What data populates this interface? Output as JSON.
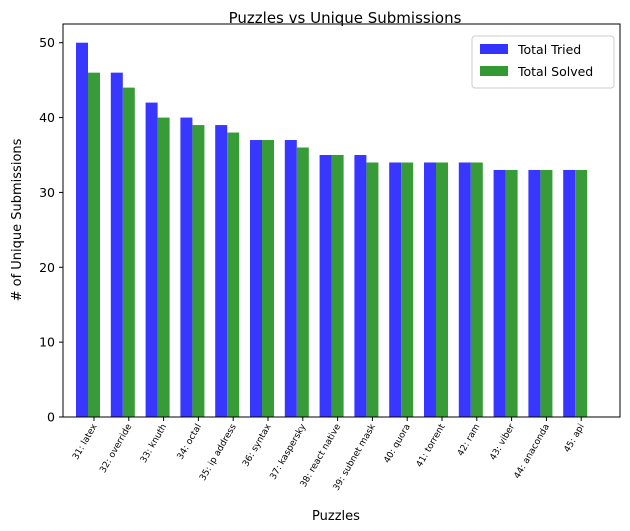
{
  "chart_data": {
    "type": "bar",
    "title": "Puzzles vs Unique Submissions",
    "xlabel": "Puzzles",
    "ylabel": "# of Unique Submissions",
    "ylim": [
      0,
      52.5
    ],
    "yticks": [
      0,
      10,
      20,
      30,
      40,
      50
    ],
    "grid": false,
    "legend_position": "top-right",
    "categories": [
      "31: latex",
      "32: override",
      "33: knuth",
      "34: octal",
      "35: ip address",
      "36: syntax",
      "37: kaspersky",
      "38: react native",
      "39: subnet mask",
      "40: quora",
      "41: torrent",
      "42: ram",
      "43: viber",
      "44: anaconda",
      "45: api"
    ],
    "series": [
      {
        "name": "Total Tried",
        "color": "#3333ff",
        "values": [
          50,
          46,
          42,
          40,
          39,
          37,
          37,
          35,
          35,
          34,
          34,
          34,
          33,
          33,
          33
        ]
      },
      {
        "name": "Total Solved",
        "color": "#339933",
        "values": [
          46,
          44,
          40,
          39,
          38,
          37,
          36,
          35,
          34,
          34,
          34,
          34,
          33,
          33,
          33
        ]
      }
    ]
  }
}
